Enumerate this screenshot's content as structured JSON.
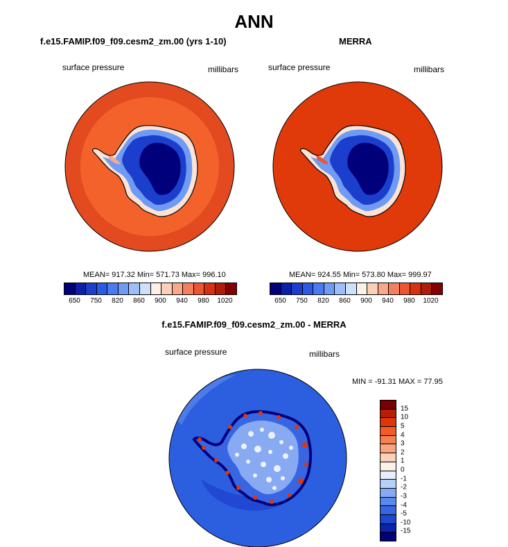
{
  "figure": {
    "title": "ANN",
    "panels": [
      {
        "title": "f.e15.FAMIP.f09_f09.cesm2_zm.00 (yrs 1-10)",
        "variable": "surface pressure",
        "units": "millibars",
        "stats": "MEAN= 917.32  Min= 571.73  Max= 996.10",
        "ocean_color": "#e34a1f",
        "ring_color": "#f4622c"
      },
      {
        "title": "MERRA",
        "variable": "surface pressure",
        "units": "millibars",
        "stats": "MEAN= 924.55  Min= 573.80  Max= 999.97",
        "ocean_color": "#e0390a",
        "ring_color": "#e0390a"
      }
    ],
    "diff_panel": {
      "title": "f.e15.FAMIP.f09_f09.cesm2_zm.00 - MERRA",
      "variable": "surface pressure",
      "units": "millibars",
      "stats": "MIN = -91.31 MAX =  77.95",
      "ocean_color": "#2c5fe0"
    },
    "colorbar": {
      "colors": [
        "#00007a",
        "#0c1fa6",
        "#1b3fcc",
        "#2b5ae6",
        "#4a7cf0",
        "#6f9bf5",
        "#9dbef9",
        "#cfe0fc",
        "#fdf0e6",
        "#fbd0bb",
        "#f7a98a",
        "#f3805d",
        "#ee5632",
        "#d9300f",
        "#b01e0a",
        "#830000"
      ],
      "labels": [
        "650",
        "750",
        "820",
        "860",
        "900",
        "940",
        "980",
        "1020"
      ]
    },
    "diff_colorbar": {
      "colors": [
        "#7a0000",
        "#b51e06",
        "#de3608",
        "#f25a28",
        "#f4804f",
        "#f7a47f",
        "#fad0b8",
        "#fdf2e8",
        "#e6efff",
        "#b8cffa",
        "#87aaf3",
        "#5b88ec",
        "#3866e3",
        "#1f46d0",
        "#0c24a6",
        "#00007a"
      ],
      "labels": [
        "15",
        "10",
        "5",
        "4",
        "3",
        "2",
        "1",
        "0",
        "-1",
        "-2",
        "-3",
        "-4",
        "-5",
        "-10",
        "-15"
      ]
    }
  }
}
